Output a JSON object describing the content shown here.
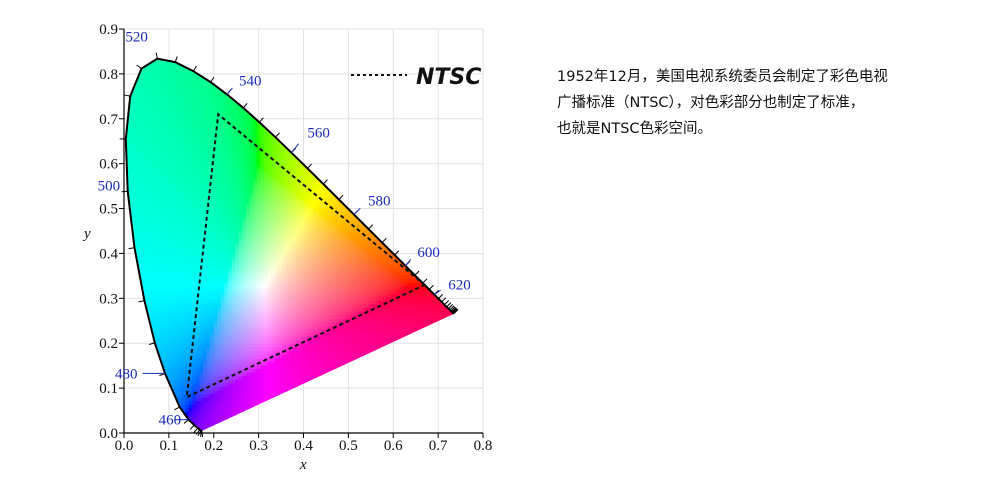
{
  "chart_data": {
    "type": "chromaticity-diagram",
    "xlabel": "x",
    "ylabel": "y",
    "xlim": [
      0.0,
      0.8
    ],
    "ylim": [
      0.0,
      0.9
    ],
    "x_ticks": [
      "0.0",
      "0.1",
      "0.2",
      "0.3",
      "0.4",
      "0.5",
      "0.6",
      "0.7",
      "0.8"
    ],
    "y_ticks": [
      "0.0",
      "0.1",
      "0.2",
      "0.3",
      "0.4",
      "0.5",
      "0.6",
      "0.7",
      "0.8",
      "0.9"
    ],
    "wavelength_labels": [
      {
        "label": "460",
        "x": 0.144,
        "y": 0.0297
      },
      {
        "label": "480",
        "x": 0.0913,
        "y": 0.1327
      },
      {
        "label": "500",
        "x": 0.0082,
        "y": 0.5384
      },
      {
        "label": "520",
        "x": 0.0743,
        "y": 0.8338
      },
      {
        "label": "540",
        "x": 0.2296,
        "y": 0.7543
      },
      {
        "label": "560",
        "x": 0.3731,
        "y": 0.6245
      },
      {
        "label": "580",
        "x": 0.5125,
        "y": 0.4866
      },
      {
        "label": "600",
        "x": 0.627,
        "y": 0.3725
      },
      {
        "label": "620",
        "x": 0.6915,
        "y": 0.3083
      }
    ],
    "spectral_locus": [
      [
        0.1741,
        0.005
      ],
      [
        0.1733,
        0.0048
      ],
      [
        0.1726,
        0.0048
      ],
      [
        0.1714,
        0.0051
      ],
      [
        0.1689,
        0.0069
      ],
      [
        0.1644,
        0.0109
      ],
      [
        0.1566,
        0.0177
      ],
      [
        0.144,
        0.0297
      ],
      [
        0.1241,
        0.0578
      ],
      [
        0.0913,
        0.1327
      ],
      [
        0.0687,
        0.2007
      ],
      [
        0.0454,
        0.295
      ],
      [
        0.0235,
        0.4127
      ],
      [
        0.0082,
        0.5384
      ],
      [
        0.0039,
        0.6548
      ],
      [
        0.0139,
        0.7502
      ],
      [
        0.0389,
        0.812
      ],
      [
        0.0743,
        0.8338
      ],
      [
        0.1142,
        0.8262
      ],
      [
        0.1547,
        0.8059
      ],
      [
        0.1929,
        0.7816
      ],
      [
        0.2296,
        0.7543
      ],
      [
        0.2658,
        0.7243
      ],
      [
        0.3016,
        0.6923
      ],
      [
        0.3373,
        0.6589
      ],
      [
        0.3731,
        0.6245
      ],
      [
        0.4087,
        0.5896
      ],
      [
        0.4441,
        0.5547
      ],
      [
        0.4788,
        0.5202
      ],
      [
        0.5125,
        0.4866
      ],
      [
        0.5448,
        0.4544
      ],
      [
        0.5752,
        0.4242
      ],
      [
        0.6029,
        0.3965
      ],
      [
        0.627,
        0.3725
      ],
      [
        0.6482,
        0.3514
      ],
      [
        0.6658,
        0.334
      ],
      [
        0.6801,
        0.3197
      ],
      [
        0.6915,
        0.3083
      ],
      [
        0.7006,
        0.2993
      ],
      [
        0.7079,
        0.292
      ],
      [
        0.714,
        0.2859
      ],
      [
        0.719,
        0.2809
      ],
      [
        0.723,
        0.277
      ],
      [
        0.726,
        0.274
      ],
      [
        0.7283,
        0.2717
      ],
      [
        0.73,
        0.27
      ],
      [
        0.7311,
        0.2689
      ],
      [
        0.732,
        0.268
      ],
      [
        0.7327,
        0.2673
      ],
      [
        0.7334,
        0.2666
      ],
      [
        0.734,
        0.266
      ],
      [
        0.7344,
        0.2656
      ],
      [
        0.7346,
        0.2654
      ],
      [
        0.7347,
        0.2653
      ]
    ],
    "gamut": {
      "name": "NTSC",
      "vertices": [
        [
          0.67,
          0.33
        ],
        [
          0.21,
          0.71
        ],
        [
          0.14,
          0.08
        ]
      ]
    },
    "legend": {
      "label": "NTSC",
      "placement": "top-right"
    },
    "grid": true
  },
  "description": {
    "lines": [
      "1952年12月，美国电视系统委员会制定了彩色电视",
      "广播标准（NTSC），对色彩部分也制定了标准，",
      "也就是NTSC色彩空间。"
    ]
  }
}
